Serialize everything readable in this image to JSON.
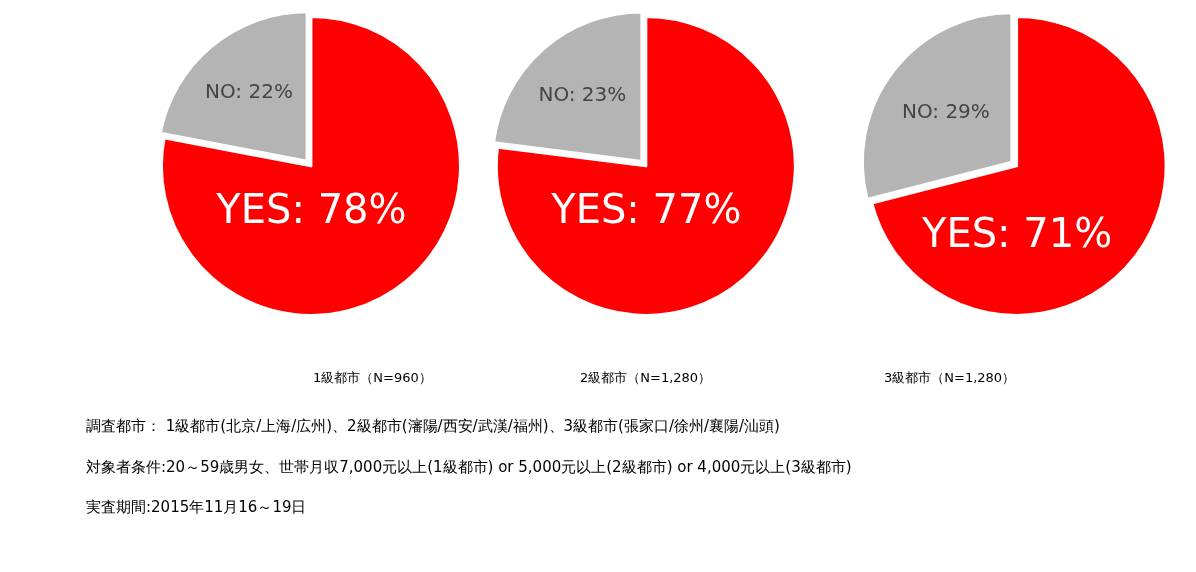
{
  "chart_data": [
    {
      "type": "pie",
      "title": "1級都市（N=960）",
      "categories": [
        "YES",
        "NO"
      ],
      "values": [
        78,
        22
      ],
      "colors": [
        "#ff0000",
        "#b4b4b4"
      ],
      "value_labels": [
        "78%",
        "22%"
      ]
    },
    {
      "type": "pie",
      "title": "2級都市（N=1,280）",
      "categories": [
        "YES",
        "NO"
      ],
      "values": [
        77,
        23
      ],
      "colors": [
        "#ff0000",
        "#b4b4b4"
      ],
      "value_labels": [
        "77%",
        "23%"
      ]
    },
    {
      "type": "pie",
      "title": "3級都市（N=1,280）",
      "categories": [
        "YES",
        "NO"
      ],
      "values": [
        71,
        29
      ],
      "colors": [
        "#ff0000",
        "#b4b4b4"
      ],
      "value_labels": [
        "71%",
        "29%"
      ],
      "annotations": [
        "調査都市： 1級都市(北京/上海/広州)、2級都市(瀋陽/西安/武漢/福州)、3級都市(張家口/徐州/襄陽/汕頭)",
        "対象者条件:20～59歳男女、世帯月収7,000元以上(1級都市) or 5,000元以上(2級都市) or 4,000元以上(3級都市)",
        "実査期間:2015年11月16～19日"
      ]
    }
  ]
}
